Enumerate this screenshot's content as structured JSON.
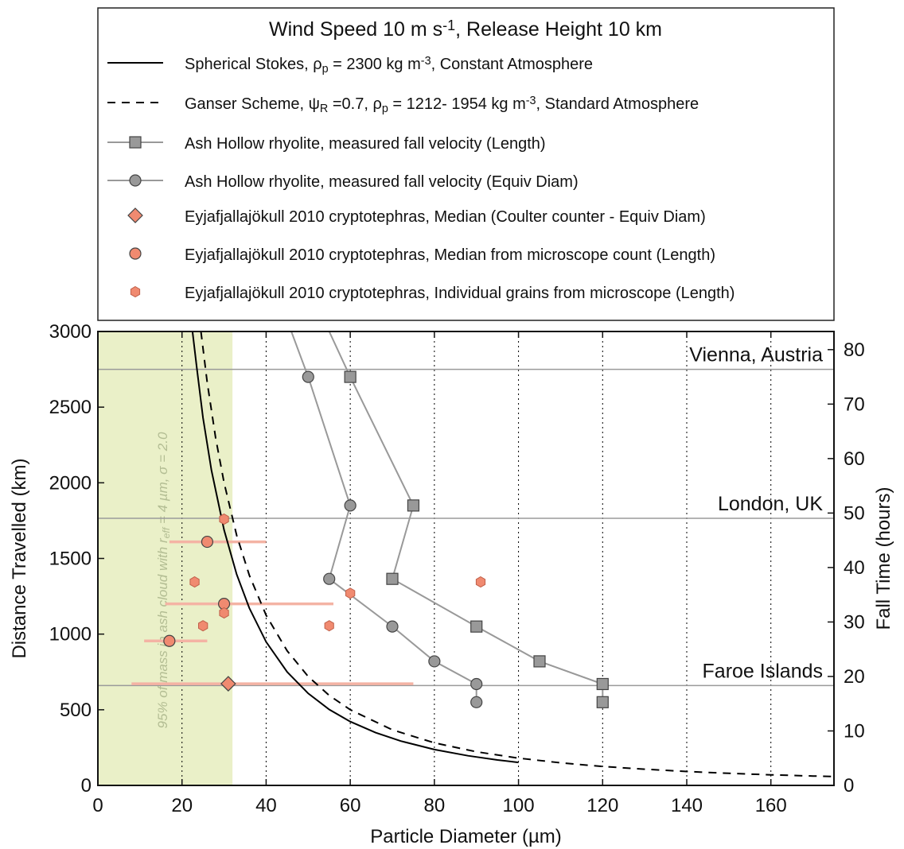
{
  "chart_data": {
    "type": "scatter",
    "legend": {
      "title": {
        "main": "Wind Speed 10 m s",
        "sup": "-1",
        "rest": ", Release Height 10 km"
      },
      "placement": "top (above plot)",
      "entries": [
        {
          "id": "stokes",
          "marker": "line-solid",
          "parts": [
            [
              "n",
              "Spherical Stokes, ρ"
            ],
            [
              "sub",
              "p"
            ],
            [
              "n",
              " = 2300 kg m"
            ],
            [
              "sup",
              "-3"
            ],
            [
              "n",
              ", Constant Atmosphere"
            ]
          ]
        },
        {
          "id": "ganser",
          "marker": "line-dashed",
          "parts": [
            [
              "n",
              "Ganser Scheme, ψ"
            ],
            [
              "sub",
              "R"
            ],
            [
              "n",
              " =0.7, ρ"
            ],
            [
              "sub",
              "p"
            ],
            [
              "n",
              " = 1212- 1954 kg m"
            ],
            [
              "sup",
              "-3"
            ],
            [
              "n",
              ", Standard Atmosphere"
            ]
          ]
        },
        {
          "id": "ash_length",
          "marker": "square-line",
          "parts": [
            [
              "n",
              "Ash Hollow rhyolite, measured fall velocity (Length)"
            ]
          ]
        },
        {
          "id": "ash_equiv",
          "marker": "circle-line",
          "parts": [
            [
              "n",
              "Ash Hollow rhyolite, measured fall velocity (Equiv Diam)"
            ]
          ]
        },
        {
          "id": "eyja_coulter",
          "marker": "diamond",
          "parts": [
            [
              "n",
              "Eyjafjallajökull 2010 cryptotephras, Median (Coulter counter - Equiv Diam)"
            ]
          ]
        },
        {
          "id": "eyja_median",
          "marker": "circle",
          "parts": [
            [
              "n",
              "Eyjafjallajökull 2010 cryptotephras, Median from microscope count (Length)"
            ]
          ]
        },
        {
          "id": "eyja_grains",
          "marker": "hexagon",
          "parts": [
            [
              "n",
              "Eyjafjallajökull 2010 cryptotephras, Individual grains from microscope (Length)"
            ]
          ]
        }
      ]
    },
    "xlabel": "Particle Diameter (µm)",
    "ylabel_left": "Distance Travelled (km)",
    "ylabel_right": "Fall Time (hours)",
    "xlim": [
      0,
      175
    ],
    "ylim_left": [
      0,
      3000
    ],
    "ylim_right_hours": [
      0,
      83.33
    ],
    "x_ticks": [
      0,
      20,
      40,
      60,
      80,
      100,
      120,
      140,
      160
    ],
    "y_left_ticks": [
      0,
      500,
      1000,
      1500,
      2000,
      2500,
      3000
    ],
    "y_right_ticks": [
      10,
      20,
      30,
      40,
      50,
      60,
      70,
      80
    ],
    "right_axis_zero_label": "0",
    "grid": "vertical dotted lines at x ticks",
    "shaded_region": {
      "x_range": [
        0,
        32
      ],
      "color": "#eaf0c8",
      "label": "95% of mass in ash cloud with r",
      "label_sub": "eff",
      "label_rest": " = 4 µm, σ = 2.0"
    },
    "locations": [
      {
        "name": "Vienna, Austria",
        "distance_km": 2750
      },
      {
        "name": "London, UK",
        "distance_km": 1765
      },
      {
        "name": "Faroe Islands",
        "distance_km": 660
      }
    ],
    "series": [
      {
        "id": "stokes",
        "kind": "curve",
        "style": "solid",
        "color": "#000000",
        "x": [
          22.5,
          23.5,
          25,
          27,
          30,
          33,
          36,
          40,
          45,
          50,
          55,
          60,
          66,
          72,
          80,
          88,
          95,
          100
        ],
        "y": [
          3000,
          2764,
          2430,
          2083,
          1688,
          1395,
          1172,
          949,
          750,
          608,
          502,
          422,
          349,
          293,
          237,
          196,
          168,
          152
        ]
      },
      {
        "id": "ganser",
        "kind": "curve",
        "style": "dashed",
        "color": "#000000",
        "x": [
          24.5,
          26,
          28,
          30,
          33,
          36,
          40,
          45,
          50,
          55,
          60,
          70,
          80,
          90,
          100,
          110,
          120,
          130,
          140,
          150,
          160,
          170,
          175
        ],
        "y": [
          3000,
          2663,
          2296,
          2000,
          1653,
          1389,
          1125,
          889,
          720,
          595,
          500,
          367,
          281,
          222,
          180,
          149,
          125,
          107,
          92,
          80,
          70,
          62,
          59
        ]
      },
      {
        "id": "ash_length",
        "kind": "marker-line",
        "marker": "square",
        "color": "#999999",
        "x": [
          120,
          120,
          105,
          90,
          70,
          75,
          60,
          55
        ],
        "y": [
          550,
          670,
          820,
          1050,
          1365,
          1850,
          2700,
          3000
        ]
      },
      {
        "id": "ash_equiv",
        "kind": "marker-line",
        "marker": "circle",
        "color": "#999999",
        "x": [
          90,
          90,
          80,
          70,
          55,
          60,
          50,
          46
        ],
        "y": [
          550,
          670,
          820,
          1050,
          1365,
          1850,
          2700,
          3000
        ]
      },
      {
        "id": "eyja_coulter",
        "kind": "points",
        "marker": "diamond",
        "color": "#f08a70",
        "points": [
          {
            "x": 31,
            "y": 672,
            "xerr": [
              8,
              75
            ]
          }
        ]
      },
      {
        "id": "eyja_median",
        "kind": "points",
        "marker": "circle",
        "color": "#f08a70",
        "points": [
          {
            "x": 26,
            "y": 1610,
            "xerr": [
              17,
              40
            ]
          },
          {
            "x": 30,
            "y": 1200,
            "xerr": [
              16,
              56
            ]
          },
          {
            "x": 17,
            "y": 955,
            "xerr": [
              11,
              26
            ]
          }
        ]
      },
      {
        "id": "eyja_grains",
        "kind": "points",
        "marker": "hexagon",
        "color": "#f08a70",
        "points": [
          {
            "x": 30,
            "y": 1760
          },
          {
            "x": 23,
            "y": 1345
          },
          {
            "x": 91,
            "y": 1345
          },
          {
            "x": 60,
            "y": 1270
          },
          {
            "x": 30,
            "y": 1140
          },
          {
            "x": 25,
            "y": 1055
          },
          {
            "x": 55,
            "y": 1055
          }
        ]
      }
    ]
  }
}
